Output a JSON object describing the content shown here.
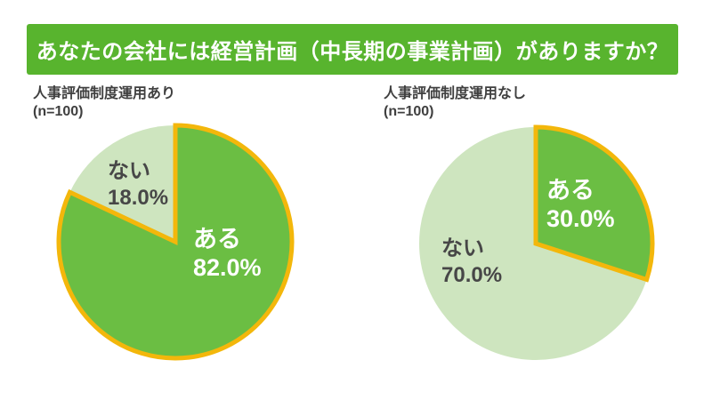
{
  "title": "あなたの会社には経営計画（中長期の事業計画）がありますか？",
  "colors": {
    "background": "#ffffff",
    "banner_bg": "#58b42e",
    "banner_text": "#ffffff",
    "header_text": "#3f3f3f",
    "pie_green": "#6bbe43",
    "pie_light_green": "#cee5bf",
    "gold_outline": "#f3b70b",
    "dark_label_text": "#474747",
    "white_label_text": "#ffffff"
  },
  "chart_data": [
    {
      "type": "pie",
      "group_label": "人事評価制度運用あり",
      "sample_label": "(n=100)",
      "start_angle_deg": -90,
      "direction": "clockwise",
      "legend": "none",
      "slices": [
        {
          "label": "ある",
          "value": 82.0,
          "display": "82.0%",
          "color": "#6bbe43",
          "outline": "#f3b70b",
          "label_color": "#ffffff"
        },
        {
          "label": "ない",
          "value": 18.0,
          "display": "18.0%",
          "color": "#cee5bf",
          "outline": null,
          "label_color": "#474747"
        }
      ]
    },
    {
      "type": "pie",
      "group_label": "人事評価制度運用なし",
      "sample_label": "(n=100)",
      "start_angle_deg": -90,
      "direction": "clockwise",
      "legend": "none",
      "slices": [
        {
          "label": "ある",
          "value": 30.0,
          "display": "30.0%",
          "color": "#6bbe43",
          "outline": "#f3b70b",
          "label_color": "#ffffff"
        },
        {
          "label": "ない",
          "value": 70.0,
          "display": "70.0%",
          "color": "#cee5bf",
          "outline": null,
          "label_color": "#474747"
        }
      ]
    }
  ]
}
